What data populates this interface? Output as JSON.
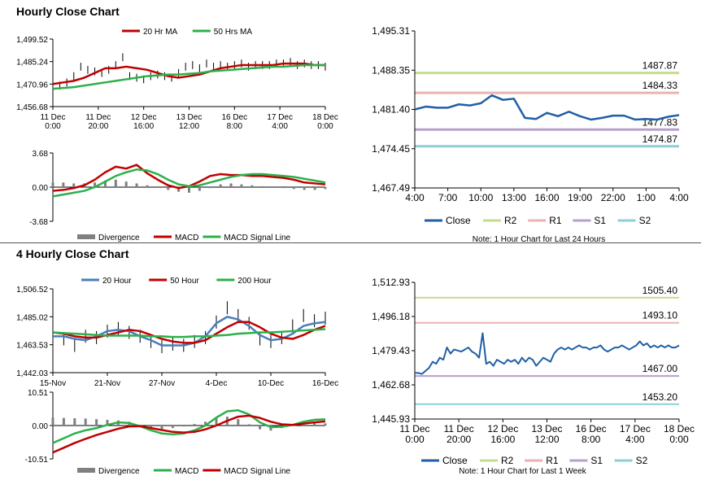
{
  "sections": [
    {
      "title": "Hourly Close Chart"
    },
    {
      "title": "4 Hourly Close Chart"
    }
  ],
  "chart_data": [
    {
      "id": "hourly-price",
      "type": "line",
      "title": "Hourly Close Chart",
      "x_ticks": [
        "11 Dec\n0:00",
        "11 Dec\n20:00",
        "12 Dec\n16:00",
        "13 Dec\n12:00",
        "16 Dec\n8:00",
        "17 Dec\n4:00",
        "18 Dec\n0:00"
      ],
      "y_ticks": [
        "1,499.52",
        "1,485.24",
        "1,470.96",
        "1,456.68"
      ],
      "ylim": [
        1456.68,
        1499.52
      ],
      "grid": false,
      "series": [
        {
          "name": "20 Hr MA",
          "color": "#c00000",
          "values": [
            1471,
            1472,
            1473,
            1475,
            1478,
            1481,
            1481,
            1482,
            1481,
            1480,
            1478,
            1476,
            1475,
            1476,
            1477,
            1479,
            1481,
            1482,
            1483,
            1483,
            1483,
            1483,
            1484,
            1484,
            1484,
            1483,
            1483
          ]
        },
        {
          "name": "50 Hrs MA",
          "color": "#2db04b",
          "values": [
            1468,
            1468.5,
            1469,
            1470,
            1471,
            1472,
            1473,
            1474,
            1475,
            1476,
            1476.5,
            1477,
            1477,
            1477.5,
            1478,
            1479,
            1479.5,
            1480,
            1480.5,
            1481,
            1481.5,
            1482,
            1482,
            1482.5,
            1483,
            1483,
            1483
          ]
        }
      ],
      "bars": {
        "name": "Close",
        "color": "#000000",
        "values": [
          1469,
          1470,
          1472,
          1476,
          1482,
          1480,
          1479,
          1478,
          1480,
          1483,
          1488,
          1476,
          1475,
          1474,
          1476,
          1477,
          1476,
          1475,
          1478,
          1482,
          1483,
          1481,
          1484,
          1482,
          1483,
          1482,
          1483,
          1484,
          1482,
          1483,
          1483,
          1483,
          1484,
          1484,
          1485,
          1483,
          1484,
          1483,
          1483,
          1482
        ]
      }
    },
    {
      "id": "hourly-macd",
      "type": "line",
      "x_ticks": [],
      "y_ticks": [
        "3.68",
        "0.00",
        "-3.68"
      ],
      "ylim": [
        -3.68,
        3.68
      ],
      "legend": [
        {
          "label": "Divergence",
          "color": "#808080",
          "kind": "bar"
        },
        {
          "label": "MACD",
          "color": "#c00000",
          "kind": "line"
        },
        {
          "label": "MACD Signal Line",
          "color": "#2db04b",
          "kind": "line"
        }
      ],
      "series": [
        {
          "name": "MACD",
          "color": "#c00000",
          "values": [
            -0.4,
            -0.3,
            -0.1,
            0.2,
            0.8,
            1.6,
            2.2,
            2.0,
            2.4,
            1.5,
            0.8,
            0.2,
            -0.1,
            0.1,
            0.6,
            1.2,
            1.4,
            1.3,
            1.3,
            1.2,
            1.2,
            1.1,
            1.0,
            0.8,
            0.5,
            0.4,
            0.3
          ]
        },
        {
          "name": "MACD Signal Line",
          "color": "#2db04b",
          "values": [
            -1.0,
            -0.8,
            -0.6,
            -0.4,
            0.0,
            0.6,
            1.2,
            1.6,
            1.9,
            1.8,
            1.4,
            0.8,
            0.3,
            0.1,
            0.2,
            0.5,
            0.8,
            1.1,
            1.3,
            1.4,
            1.4,
            1.3,
            1.2,
            1.1,
            0.9,
            0.7,
            0.5
          ]
        }
      ],
      "divergence": [
        0.5,
        0.5,
        0.4,
        0.4,
        0.5,
        0.7,
        0.8,
        0.6,
        0.4,
        0.2,
        0.0,
        -0.3,
        -0.5,
        -0.6,
        -0.4,
        -0.1,
        0.3,
        0.4,
        0.3,
        0.2,
        0.1,
        0.0,
        -0.1,
        -0.2,
        -0.3,
        -0.3,
        -0.2
      ]
    },
    {
      "id": "hourly-levels",
      "type": "line",
      "x_ticks": [
        "4:00",
        "7:00",
        "10:00",
        "13:00",
        "16:00",
        "19:00",
        "22:00",
        "1:00",
        "4:00"
      ],
      "y_ticks": [
        "1,495.31",
        "1,488.35",
        "1,481.40",
        "1,474.45",
        "1,467.49"
      ],
      "ylim": [
        1467.49,
        1495.31
      ],
      "legend": [
        {
          "label": "Close",
          "color": "#1f5fa6"
        },
        {
          "label": "R2",
          "color": "#c5dc8e"
        },
        {
          "label": "R1",
          "color": "#eab3b1"
        },
        {
          "label": "S1",
          "color": "#b6a0cc"
        },
        {
          "label": "S2",
          "color": "#8ecfd6"
        }
      ],
      "note": "Note: 1 Hour Chart for Last 24 Hours",
      "levels": [
        {
          "name": "R2",
          "value": 1487.87,
          "label": "1487.87",
          "color": "#c5dc8e"
        },
        {
          "name": "R1",
          "value": 1484.33,
          "label": "1484.33",
          "color": "#eab3b1"
        },
        {
          "name": "S1",
          "value": 1477.83,
          "label": "1477.83",
          "color": "#b6a0cc"
        },
        {
          "name": "S2",
          "value": 1474.87,
          "label": "1474.87",
          "color": "#8ecfd6"
        }
      ],
      "series": [
        {
          "name": "Close",
          "color": "#1f5fa6",
          "values": [
            1481.4,
            1481.9,
            1481.7,
            1481.7,
            1482.3,
            1482.1,
            1482.5,
            1483.9,
            1483.1,
            1483.3,
            1479.9,
            1479.7,
            1480.8,
            1480.2,
            1481.0,
            1480.2,
            1479.6,
            1479.9,
            1480.3,
            1480.3,
            1479.6,
            1479.7,
            1479.6,
            1480.1,
            1480.4
          ]
        }
      ]
    },
    {
      "id": "four-hourly-price",
      "type": "line",
      "title": "4 Hourly Close Chart",
      "x_ticks": [
        "15-Nov",
        "21-Nov",
        "27-Nov",
        "4-Dec",
        "10-Dec",
        "16-Dec"
      ],
      "y_ticks": [
        "1,506.52",
        "1,485.02",
        "1,463.53",
        "1,442.03"
      ],
      "ylim": [
        1442.03,
        1506.52
      ],
      "series": [
        {
          "name": "20 Hour",
          "color": "#4a7ebb",
          "values": [
            1470,
            1470,
            1468,
            1467,
            1470,
            1474,
            1475,
            1474,
            1470,
            1467,
            1463,
            1463,
            1463,
            1465,
            1470,
            1480,
            1485,
            1483,
            1478,
            1471,
            1467,
            1468,
            1472,
            1478,
            1480,
            1481
          ]
        },
        {
          "name": "50 Hour",
          "color": "#c00000",
          "values": [
            1473,
            1472,
            1470,
            1469,
            1469,
            1471,
            1473,
            1475,
            1474,
            1471,
            1468,
            1466,
            1465,
            1465,
            1467,
            1472,
            1477,
            1481,
            1481,
            1477,
            1472,
            1469,
            1468,
            1471,
            1475,
            1478
          ]
        },
        {
          "name": "200 Hour",
          "color": "#2db04b",
          "values": [
            1473,
            1472.5,
            1472,
            1471.5,
            1471,
            1470.5,
            1470.5,
            1470.5,
            1470.5,
            1470,
            1470,
            1469.5,
            1469.5,
            1470,
            1470,
            1470.5,
            1471,
            1472,
            1472.5,
            1473,
            1473,
            1473.5,
            1474,
            1474.5,
            1475,
            1475.5
          ]
        }
      ],
      "bars": {
        "name": "Close",
        "color": "#000000",
        "values": [
          1472,
          1468,
          1463,
          1470,
          1469,
          1474,
          1476,
          1473,
          1470,
          1466,
          1462,
          1464,
          1463,
          1466,
          1469,
          1481,
          1492,
          1486,
          1480,
          1468,
          1466,
          1469,
          1478,
          1486,
          1482,
          1484
        ]
      }
    },
    {
      "id": "four-hourly-macd",
      "type": "line",
      "x_ticks": [],
      "y_ticks": [
        "10.51",
        "0.00",
        "-10.51"
      ],
      "ylim": [
        -10.51,
        10.51
      ],
      "legend": [
        {
          "label": "Divergence",
          "color": "#808080",
          "kind": "bar"
        },
        {
          "label": "MACD",
          "color": "#2db04b",
          "kind": "line"
        },
        {
          "label": "MACD Signal Line",
          "color": "#c00000",
          "kind": "line"
        }
      ],
      "series": [
        {
          "name": "MACD",
          "color": "#2db04b",
          "values": [
            -5.5,
            -4.0,
            -2.5,
            -1.5,
            -0.8,
            0.2,
            1.0,
            0.8,
            -0.2,
            -1.5,
            -2.5,
            -2.8,
            -2.5,
            -1.5,
            0.0,
            2.5,
            4.5,
            4.8,
            3.5,
            1.0,
            -0.5,
            -0.4,
            0.2,
            1.2,
            1.8,
            2.0
          ]
        },
        {
          "name": "MACD Signal Line",
          "color": "#c00000",
          "values": [
            -8.5,
            -7.0,
            -5.5,
            -4.2,
            -3.0,
            -2.0,
            -1.0,
            -0.3,
            -0.2,
            -0.8,
            -1.4,
            -2.0,
            -2.2,
            -2.0,
            -1.2,
            0.0,
            1.5,
            2.8,
            3.1,
            2.4,
            1.2,
            0.4,
            0.2,
            0.6,
            1.0,
            1.3
          ]
        }
      ],
      "divergence": [
        2.5,
        2.4,
        2.3,
        2.2,
        2.0,
        1.8,
        1.6,
        1.2,
        0.2,
        -0.6,
        -1.1,
        -0.8,
        -0.3,
        0.5,
        1.2,
        2.2,
        2.8,
        2.0,
        0.4,
        -1.2,
        -1.6,
        -0.8,
        0.0,
        0.6,
        0.8,
        0.7
      ]
    },
    {
      "id": "four-hourly-levels",
      "type": "line",
      "x_ticks": [
        "11 Dec\n0:00",
        "11 Dec\n20:00",
        "12 Dec\n16:00",
        "13 Dec\n12:00",
        "16 Dec\n8:00",
        "17 Dec\n4:00",
        "18 Dec\n0:00"
      ],
      "y_ticks": [
        "1,512.93",
        "1,496.18",
        "1,479.43",
        "1,462.68",
        "1,445.93"
      ],
      "ylim": [
        1445.93,
        1512.93
      ],
      "legend": [
        {
          "label": "Close",
          "color": "#1f5fa6"
        },
        {
          "label": "R2",
          "color": "#c5dc8e"
        },
        {
          "label": "R1",
          "color": "#eab3b1"
        },
        {
          "label": "S1",
          "color": "#b6a0cc"
        },
        {
          "label": "S2",
          "color": "#8ecfd6"
        }
      ],
      "note": "Note: 1 Hour Chart for Last 1 Week",
      "levels": [
        {
          "name": "R2",
          "value": 1505.4,
          "label": "1505.40",
          "color": "#c5dc8e"
        },
        {
          "name": "R1",
          "value": 1493.1,
          "label": "1493.10",
          "color": "#eab3b1"
        },
        {
          "name": "S1",
          "value": 1467.0,
          "label": "1467.00",
          "color": "#b6a0cc"
        },
        {
          "name": "S2",
          "value": 1453.2,
          "label": "1453.20",
          "color": "#8ecfd6"
        }
      ],
      "series": [
        {
          "name": "Close",
          "color": "#1f5fa6",
          "values": [
            1468.5,
            1468.5,
            1468.0,
            1469.5,
            1471,
            1474,
            1473,
            1476,
            1475,
            1481,
            1478,
            1480,
            1479.5,
            1479,
            1480,
            1481,
            1479,
            1478,
            1476,
            1488,
            1473,
            1474,
            1472,
            1475,
            1474,
            1473,
            1475,
            1474,
            1475,
            1473,
            1476,
            1474,
            1476,
            1475,
            1472,
            1474,
            1476,
            1475,
            1474,
            1478,
            1480,
            1481,
            1480,
            1481,
            1480,
            1481,
            1482,
            1481,
            1481,
            1480,
            1481,
            1481,
            1482,
            1480,
            1479,
            1480,
            1481,
            1481,
            1482,
            1481,
            1480,
            1481,
            1482,
            1484,
            1482,
            1483,
            1481,
            1482,
            1481,
            1482,
            1481,
            1482,
            1481,
            1481,
            1482
          ]
        }
      ]
    }
  ]
}
